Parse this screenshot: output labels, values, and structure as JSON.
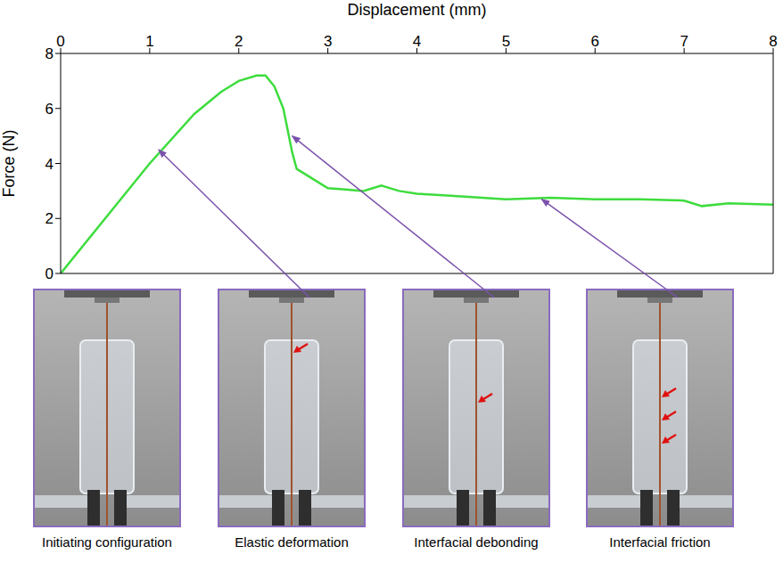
{
  "chart_data": {
    "type": "line",
    "x_label": "Displacement (mm)",
    "y_label": "Force (N)",
    "color": "#3ddc3d",
    "x": [
      0,
      0.5,
      1.0,
      1.5,
      1.8,
      2.0,
      2.2,
      2.3,
      2.4,
      2.5,
      2.55,
      2.6,
      2.65,
      2.8,
      3.0,
      3.2,
      3.4,
      3.6,
      3.8,
      4.0,
      4.5,
      5.0,
      5.5,
      6.0,
      6.5,
      7.0,
      7.2,
      7.5,
      8.0
    ],
    "values": [
      0,
      2.0,
      4.0,
      5.8,
      6.6,
      7.0,
      7.2,
      7.2,
      6.8,
      6.0,
      5.2,
      4.4,
      3.8,
      3.5,
      3.1,
      3.05,
      3.0,
      3.2,
      3.0,
      2.9,
      2.8,
      2.7,
      2.75,
      2.7,
      2.7,
      2.65,
      2.45,
      2.55,
      2.5
    ],
    "xlim": [
      0,
      8
    ],
    "ylim": [
      0,
      8
    ],
    "xticks": [
      0,
      1,
      2,
      3,
      4,
      5,
      6,
      7,
      8
    ],
    "yticks": [
      0,
      2,
      4,
      6,
      8
    ],
    "grid": false,
    "annotations": [
      {
        "text": "Initiating configuration"
      },
      {
        "text": "Elastic deformation",
        "x": 1.1,
        "y": 4.5
      },
      {
        "text": "Interfacial debonding",
        "x": 2.6,
        "y": 5.0
      },
      {
        "text": "Interfacial friction",
        "x": 5.4,
        "y": 2.7
      }
    ]
  }
}
